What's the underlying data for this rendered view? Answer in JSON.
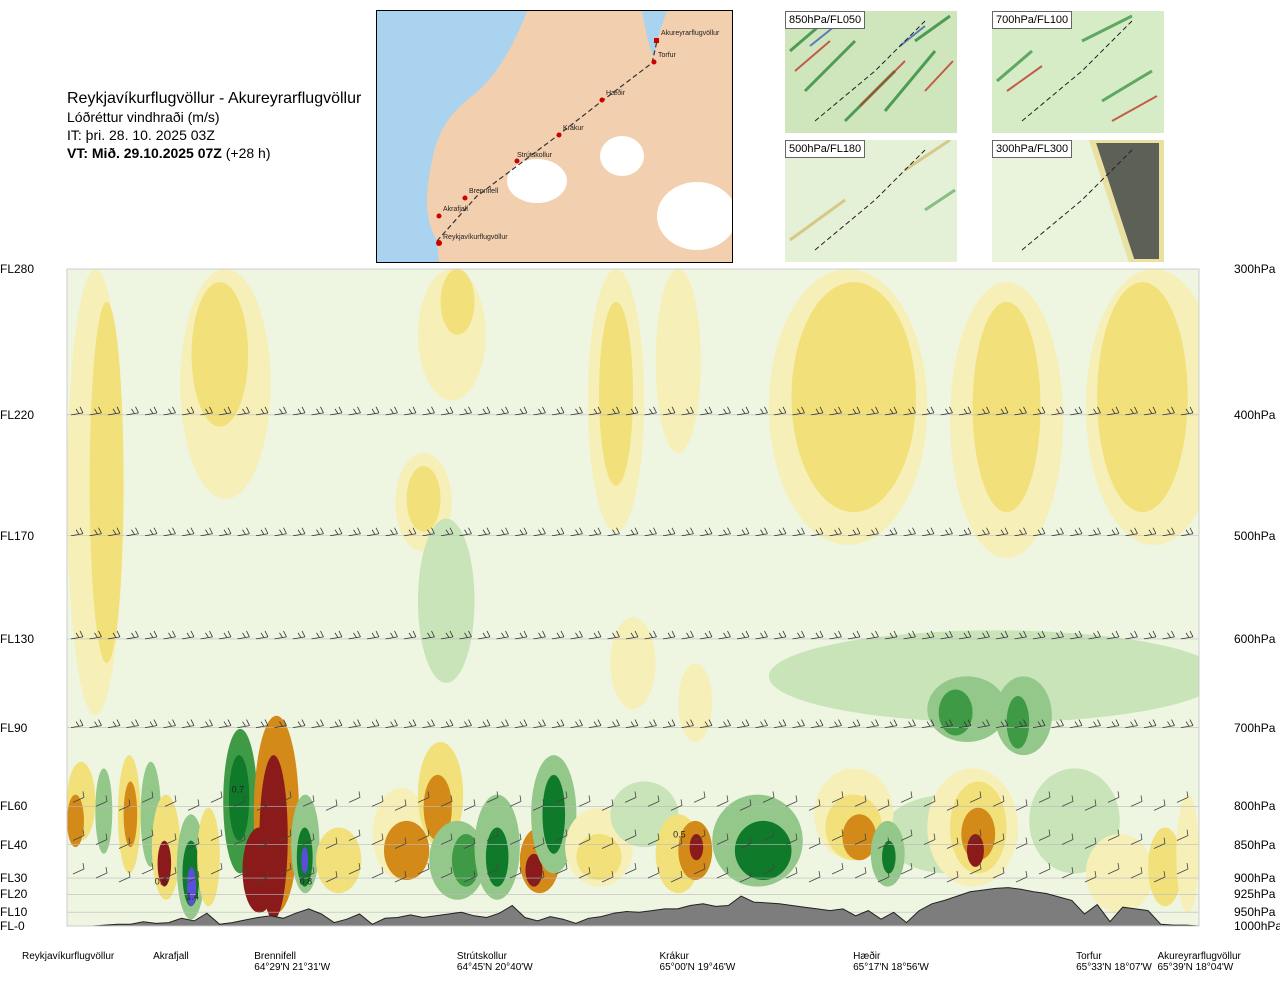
{
  "header": {
    "title": "Reykjavíkurflugvöllur - Akureyrarflugvöllur",
    "subtitle": "Lóðréttur vindhraði (m/s)",
    "issue_time": "IT: þri. 28. 10. 2025 03Z",
    "valid_time": "VT: Mið. 29.10.2025 07Z",
    "valid_offset": "(+28 h)"
  },
  "route_map": {
    "waypoints": [
      "Akureyrarflugvöllur",
      "Torfur",
      "Hæðir",
      "Krákur",
      "Strútskollur",
      "Brennifell",
      "Akrafjall",
      "Reykjavíkurflugvöllur"
    ]
  },
  "level_maps": [
    {
      "label": "850hPa/FL050"
    },
    {
      "label": "700hPa/FL100"
    },
    {
      "label": "500hPa/FL180"
    },
    {
      "label": "300hPa/FL300"
    }
  ],
  "chart_data": {
    "type": "heatmap",
    "title": "Reykjavíkurflugvöllur - Akureyrarflugvöllur",
    "subtitle": "Lóðréttur vindhraði (m/s)",
    "y_levels": [
      {
        "fl": "FL280",
        "hpa": "300hPa",
        "frac": 0.0
      },
      {
        "fl": "FL220",
        "hpa": "400hPa",
        "frac": 0.222
      },
      {
        "fl": "FL170",
        "hpa": "500hPa",
        "frac": 0.406
      },
      {
        "fl": "FL130",
        "hpa": "600hPa",
        "frac": 0.563
      },
      {
        "fl": "FL90",
        "hpa": "700hPa",
        "frac": 0.698
      },
      {
        "fl": "FL60",
        "hpa": "800hPa",
        "frac": 0.818
      },
      {
        "fl": "FL40",
        "hpa": "850hPa",
        "frac": 0.876
      },
      {
        "fl": "FL30",
        "hpa": "900hPa",
        "frac": 0.927
      },
      {
        "fl": "FL20",
        "hpa": "925hPa",
        "frac": 0.952
      },
      {
        "fl": "FL10",
        "hpa": "950hPa",
        "frac": 0.979
      },
      {
        "fl": "FL-0",
        "hpa": "1000hPa",
        "frac": 1.0
      }
    ],
    "stations": [
      {
        "name": "Reykjavíkurflugvöllur",
        "coord": "",
        "x": 0.0
      },
      {
        "name": "Akrafjall",
        "coord": "",
        "x": 0.092
      },
      {
        "name": "Brennifell",
        "coord": "64°29'N 21°31'W",
        "x": 0.199
      },
      {
        "name": "Strútskollur",
        "coord": "64°45'N 20°40'W",
        "x": 0.378
      },
      {
        "name": "Krákur",
        "coord": "65°00'N 19°46'W",
        "x": 0.557
      },
      {
        "name": "Hæðir",
        "coord": "65°17'N 18°56'W",
        "x": 0.728
      },
      {
        "name": "Torfur",
        "coord": "65°33'N 18°07'W",
        "x": 0.925
      },
      {
        "name": "Akureyrarflugvöllur",
        "coord": "65°39'N 18°04'W",
        "x": 1.0
      }
    ],
    "value_labels": [
      {
        "text": "0.6",
        "x": 0.083,
        "frac": 0.937
      },
      {
        "text": "1.4",
        "x": 0.111,
        "frac": 0.96
      },
      {
        "text": "0.7",
        "x": 0.151,
        "frac": 0.797
      },
      {
        "text": "0.8",
        "x": 0.211,
        "frac": 0.937
      },
      {
        "text": "0.5",
        "x": 0.541,
        "frac": 0.865
      }
    ],
    "terrain_profile": [
      0,
      0,
      0,
      0.01,
      0.02,
      0.02,
      0.05,
      0.03,
      0.04,
      0.09,
      0.06,
      0.15,
      0.02,
      0.04,
      0.07,
      0.1,
      0.12,
      0.09,
      0.15,
      0.2,
      0.14,
      0.04,
      0.08,
      0.14,
      0.02,
      0.09,
      0.1,
      0.13,
      0.1,
      0.12,
      0.14,
      0.16,
      0.12,
      0.1,
      0.15,
      0.24,
      0.1,
      0.06,
      0.11,
      0.08,
      0.03,
      0.09,
      0.11,
      0.15,
      0.17,
      0.16,
      0.18,
      0.2,
      0.2,
      0.24,
      0.26,
      0.23,
      0.24,
      0.35,
      0.28,
      0.27,
      0.26,
      0.24,
      0.22,
      0.2,
      0.18,
      0.2,
      0.12,
      0.18,
      0.08,
      0.16,
      0.04,
      0.18,
      0.26,
      0.3,
      0.35,
      0.4,
      0.42,
      0.44,
      0.45,
      0.43,
      0.4,
      0.38,
      0.34,
      0.3,
      0.14,
      0.25,
      0.05,
      0.22,
      0.2,
      0.18,
      0.02,
      0.01,
      0.01,
      0.0
    ],
    "colors": {
      "strong_down": "#8b1a1a",
      "down_mod": "#d48a18",
      "down_weak": "#f2e07a",
      "down_faint": "#f7efb8",
      "neutral": "#eef6e2",
      "up_faint": "#c8e4b8",
      "up_weak": "#93c88a",
      "up_mod": "#3f9a45",
      "up_strong": "#0f7a2a",
      "up_extreme": "#5a4fd6",
      "terrain": "#7d7d7d"
    }
  }
}
